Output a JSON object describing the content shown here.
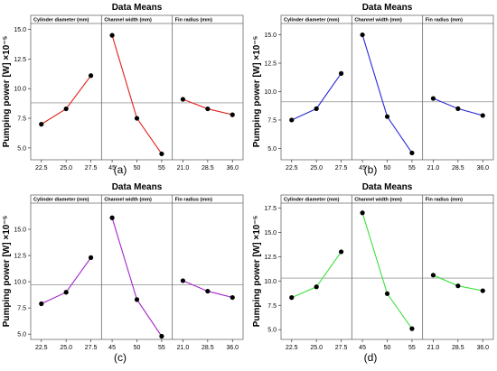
{
  "figure": {
    "captions": [
      "(a)",
      "(b)",
      "(c)",
      "(d)"
    ]
  },
  "chart_data": [
    {
      "type": "line",
      "title": "Data Means",
      "ylabel": "Pumping power [W] ×10⁻⁵",
      "ylim": [
        4.0,
        15.5
      ],
      "yticks": [
        5.0,
        7.5,
        10.0,
        12.5,
        15.0
      ],
      "ytick_labels": [
        "5.0",
        "7.5",
        "10.0",
        "12.5",
        "15.0"
      ],
      "reference_mean": 8.8,
      "color": "#e0201c",
      "panels": [
        {
          "label": "Cylinder diameter (mm)",
          "x": [
            "22.5",
            "25.0",
            "27.5"
          ],
          "values": [
            7.0,
            8.3,
            11.1
          ]
        },
        {
          "label": "Channel width (mm)",
          "x": [
            "45",
            "50",
            "55"
          ],
          "values": [
            14.5,
            7.5,
            4.5
          ]
        },
        {
          "label": "Fin radius (mm)",
          "x": [
            "21.0",
            "28.5",
            "36.0"
          ],
          "values": [
            9.1,
            8.3,
            7.8
          ]
        }
      ]
    },
    {
      "type": "line",
      "title": "Data Means",
      "ylabel": "Pumping power [W] ×10⁻⁵",
      "ylim": [
        4.0,
        16.0
      ],
      "yticks": [
        5.0,
        7.5,
        10.0,
        12.5,
        15.0
      ],
      "ytick_labels": [
        "5.0",
        "7.5",
        "10.0",
        "12.5",
        "15.0"
      ],
      "reference_mean": 9.1,
      "color": "#2a2ad8",
      "panels": [
        {
          "label": "Cylinder diameter (mm)",
          "x": [
            "22.5",
            "25.0",
            "27.5"
          ],
          "values": [
            7.5,
            8.5,
            11.6
          ]
        },
        {
          "label": "Channel width (mm)",
          "x": [
            "45",
            "50",
            "55"
          ],
          "values": [
            15.0,
            7.8,
            4.6
          ]
        },
        {
          "label": "Fin radius (mm)",
          "x": [
            "21.0",
            "28.5",
            "36.0"
          ],
          "values": [
            9.4,
            8.5,
            7.9
          ]
        }
      ]
    },
    {
      "type": "line",
      "title": "Data Means",
      "ylabel": "Pumping power [W] ×10⁻⁵",
      "ylim": [
        4.5,
        17.5
      ],
      "yticks": [
        5.0,
        7.5,
        10.0,
        12.5,
        15.0
      ],
      "ytick_labels": [
        "5.0",
        "7.5",
        "10.0",
        "12.5",
        "15.0"
      ],
      "reference_mean": 9.7,
      "color": "#a424c8",
      "panels": [
        {
          "label": "Cylinder diameter (mm)",
          "x": [
            "22.5",
            "25.0",
            "27.5"
          ],
          "values": [
            7.9,
            9.0,
            12.3
          ]
        },
        {
          "label": "Channel width (mm)",
          "x": [
            "45",
            "50",
            "55"
          ],
          "values": [
            16.1,
            8.3,
            4.8
          ]
        },
        {
          "label": "Fin radius (mm)",
          "x": [
            "21.0",
            "28.5",
            "36.0"
          ],
          "values": [
            10.1,
            9.1,
            8.5
          ]
        }
      ]
    },
    {
      "type": "line",
      "title": "Data Means",
      "ylabel": "Pumping power [W] ×10⁻⁵",
      "ylim": [
        4.0,
        18.0
      ],
      "yticks": [
        5.0,
        7.5,
        10.0,
        12.5,
        15.0,
        17.5
      ],
      "ytick_labels": [
        "5.0",
        "7.5",
        "10.0",
        "12.5",
        "15.0",
        "17.5"
      ],
      "reference_mean": 10.3,
      "color": "#3ee03e",
      "panels": [
        {
          "label": "Cylinder diameter (mm)",
          "x": [
            "22.5",
            "25.0",
            "27.5"
          ],
          "values": [
            8.3,
            9.4,
            13.0
          ]
        },
        {
          "label": "Channel width (mm)",
          "x": [
            "45",
            "50",
            "55"
          ],
          "values": [
            17.0,
            8.7,
            5.1
          ]
        },
        {
          "label": "Fin radius (mm)",
          "x": [
            "21.0",
            "28.5",
            "36.0"
          ],
          "values": [
            10.6,
            9.5,
            9.0
          ]
        }
      ]
    }
  ]
}
